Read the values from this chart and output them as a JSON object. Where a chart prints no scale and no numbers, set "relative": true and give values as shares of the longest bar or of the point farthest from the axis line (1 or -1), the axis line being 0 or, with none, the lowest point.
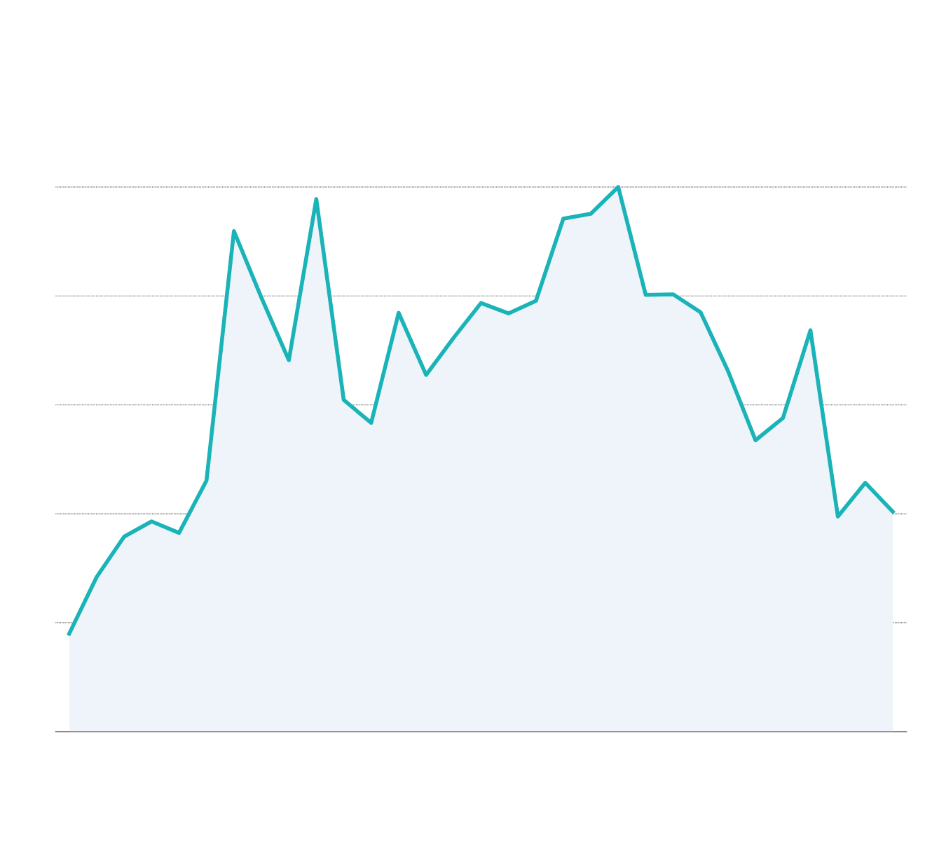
{
  "chart_data": {
    "type": "area",
    "relative": true,
    "grid": "y",
    "line_style": "solid",
    "categories": [
      null,
      null,
      null,
      null,
      null,
      null,
      null,
      null,
      null,
      null,
      null,
      null,
      null,
      null,
      null,
      null,
      null,
      null,
      null,
      null,
      null,
      null,
      null,
      null,
      null,
      null,
      null,
      null,
      null,
      null,
      null
    ],
    "series": [
      {
        "color": "#1ab3b8",
        "values": [
          0.18,
          0.284,
          0.358,
          0.386,
          0.365,
          0.461,
          0.919,
          0.797,
          0.682,
          0.978,
          0.609,
          0.567,
          0.769,
          0.655,
          0.723,
          0.787,
          0.768,
          0.791,
          0.942,
          0.951,
          1,
          0.802,
          0.803,
          0.77,
          0.662,
          0.535,
          0.576,
          0.737,
          0.395,
          0.457,
          0.404
        ]
      }
    ]
  }
}
